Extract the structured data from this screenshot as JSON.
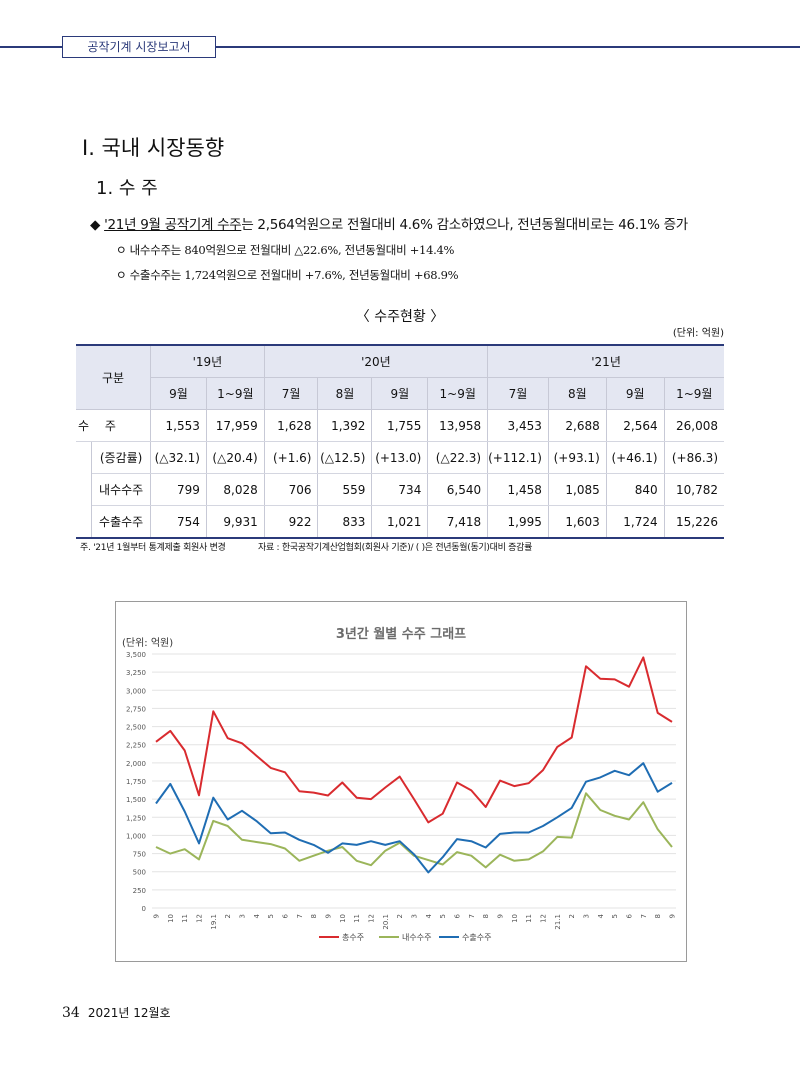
{
  "header": {
    "tab_label": "공작기계 시장보고서"
  },
  "section": {
    "title": "Ⅰ. 국내 시장동향",
    "subtitle": "1. 수 주"
  },
  "bullet": {
    "marker": "◆",
    "underlined": "'21년 9월 공작기계 수주",
    "rest": "는 2,564억원으로 전월대비 4.6% 감소하였으나, 전년동월대비로는 46.1% 증가"
  },
  "subs": [
    {
      "marker": "ㅇ",
      "text": "내수수주는 840억원으로 전월대비 △22.6%, 전년동월대비 +14.4%"
    },
    {
      "marker": "ㅇ",
      "text": "수출수주는 1,724억원으로 전월대비 +7.6%, 전년동월대비 +68.9%"
    }
  ],
  "table": {
    "title": "〈 수주현황 〉",
    "unit": "(단위: 억원)",
    "corner": "구분",
    "years": [
      "'19년",
      "'20년",
      "'21년"
    ],
    "months": [
      "9월",
      "1~9월",
      "7월",
      "8월",
      "9월",
      "1~9월",
      "7월",
      "8월",
      "9월",
      "1~9월"
    ],
    "rows": [
      {
        "label": "수 주",
        "values": [
          "1,553",
          "17,959",
          "1,628",
          "1,392",
          "1,755",
          "13,958",
          "3,453",
          "2,688",
          "2,564",
          "26,008"
        ]
      },
      {
        "label": "(증감률)",
        "values": [
          "(△32.1)",
          "(△20.4)",
          "(+1.6)",
          "(△12.5)",
          "(+13.0)",
          "(△22.3)",
          "(+112.1)",
          "(+93.1)",
          "(+46.1)",
          "(+86.3)"
        ]
      },
      {
        "label": "내수수주",
        "values": [
          "799",
          "8,028",
          "706",
          "559",
          "734",
          "6,540",
          "1,458",
          "1,085",
          "840",
          "10,782"
        ]
      },
      {
        "label": "수출수주",
        "values": [
          "754",
          "9,931",
          "922",
          "833",
          "1,021",
          "7,418",
          "1,995",
          "1,603",
          "1,724",
          "15,226"
        ]
      }
    ]
  },
  "notes": {
    "left": "주. '21년 1월부터 통계제출 회원사 변경",
    "right": "자료 : 한국공작기계산업협회(회원사 기준)/ (  )은 전년동월(동기)대비 증감률"
  },
  "chart_data": {
    "type": "line",
    "title": "3년간 월별 수주 그래프",
    "ylabel": "(단위: 억원)",
    "ylim": [
      0,
      3500
    ],
    "yticks": [
      "0",
      "250",
      "500",
      "750",
      "1,000",
      "1,250",
      "1,500",
      "1,750",
      "2,000",
      "2,250",
      "2,500",
      "2,750",
      "3,000",
      "3,250",
      "3,500"
    ],
    "categories": [
      "9",
      "10",
      "11",
      "12",
      "19.1",
      "2",
      "3",
      "4",
      "5",
      "6",
      "7",
      "8",
      "9",
      "10",
      "11",
      "12",
      "20.1",
      "2",
      "3",
      "4",
      "5",
      "6",
      "7",
      "8",
      "9",
      "10",
      "11",
      "12",
      "21.1",
      "2",
      "3",
      "4",
      "5",
      "6",
      "7",
      "8",
      "9"
    ],
    "series": [
      {
        "name": "총수주",
        "color": "#d92b2f",
        "values": [
          2290,
          2440,
          2170,
          1553,
          2710,
          2340,
          2270,
          2100,
          1930,
          1870,
          1610,
          1590,
          1550,
          1730,
          1520,
          1500,
          1660,
          1810,
          1500,
          1180,
          1300,
          1730,
          1620,
          1392,
          1755,
          1680,
          1720,
          1900,
          2220,
          2350,
          3330,
          3160,
          3150,
          3050,
          3453,
          2688,
          2564
        ]
      },
      {
        "name": "내수수주",
        "color": "#9bb55a",
        "values": [
          840,
          750,
          810,
          670,
          1200,
          1130,
          940,
          910,
          880,
          820,
          650,
          720,
          790,
          840,
          650,
          590,
          790,
          900,
          720,
          660,
          600,
          770,
          720,
          559,
          734,
          650,
          670,
          780,
          980,
          970,
          1580,
          1350,
          1270,
          1220,
          1458,
          1085,
          840
        ]
      },
      {
        "name": "수출수주",
        "color": "#1f6db3",
        "values": [
          1440,
          1710,
          1330,
          890,
          1520,
          1220,
          1340,
          1200,
          1030,
          1040,
          940,
          870,
          760,
          890,
          870,
          920,
          870,
          920,
          740,
          490,
          700,
          950,
          920,
          833,
          1021,
          1040,
          1040,
          1130,
          1250,
          1380,
          1740,
          1800,
          1890,
          1830,
          1995,
          1603,
          1724
        ]
      }
    ]
  },
  "footer": {
    "page": "34",
    "issue": "2021년 12월호"
  }
}
